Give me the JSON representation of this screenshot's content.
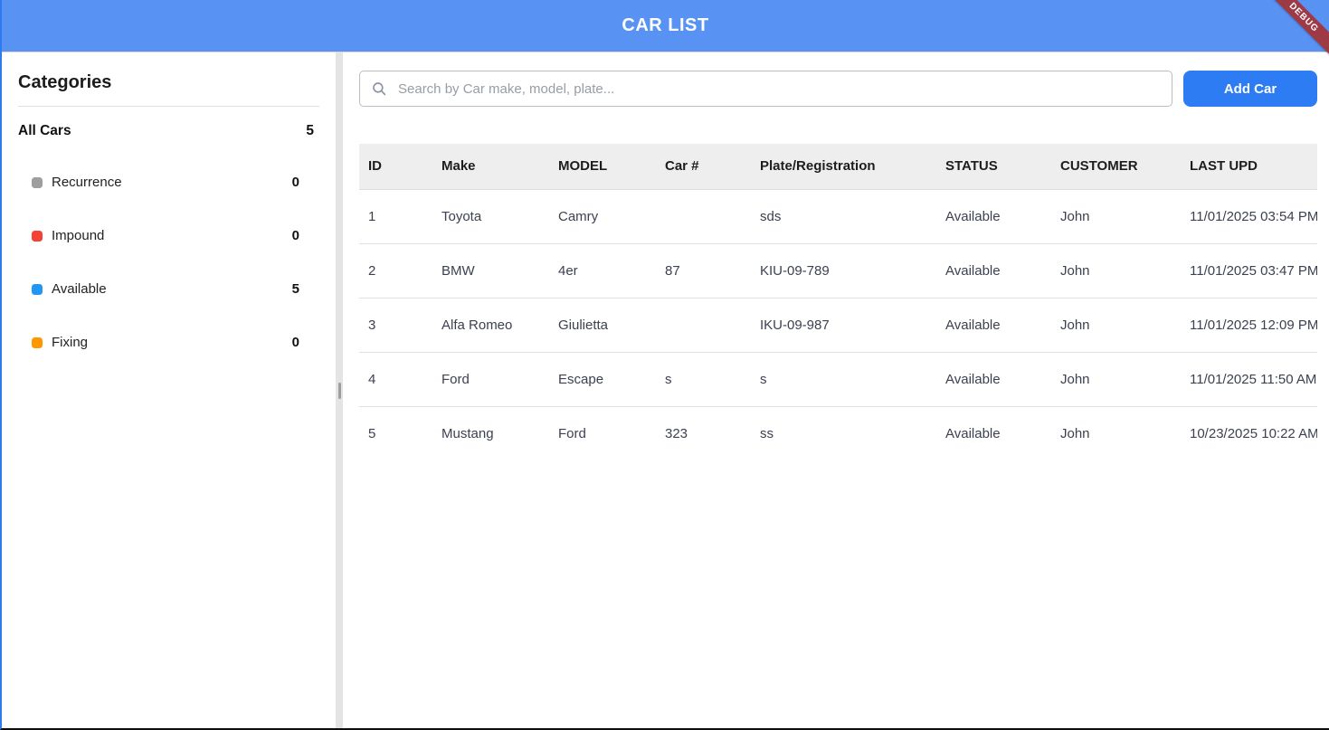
{
  "app": {
    "title": "CAR LIST",
    "debug_ribbon": "DEBUG"
  },
  "colors": {
    "header_blue": "#5892f3",
    "accent_button_blue": "#2d7cf3",
    "ribbon_maroon": "#9e3a46",
    "window_border_blue": "#2e7bf0",
    "table_header_bg": "#eeeeee"
  },
  "sidebar": {
    "heading": "Categories",
    "all_cars": {
      "label": "All Cars",
      "count": "5"
    },
    "items": [
      {
        "label": "Recurrence",
        "count": "0",
        "color": "#9e9e9e"
      },
      {
        "label": "Impound",
        "count": "0",
        "color": "#f44336"
      },
      {
        "label": "Available",
        "count": "5",
        "color": "#2196f3"
      },
      {
        "label": "Fixing",
        "count": "0",
        "color": "#ff9800"
      }
    ]
  },
  "toolbar": {
    "search_placeholder": "Search by Car make, model, plate...",
    "add_car_label": "Add Car"
  },
  "table": {
    "columns": [
      "ID",
      "Make",
      "MODEL",
      "Car #",
      "Plate/Registration",
      "STATUS",
      "CUSTOMER",
      "LAST UPD"
    ],
    "rows": [
      [
        "1",
        "Toyota",
        "Camry",
        "",
        "sds",
        "Available",
        "John",
        "11/01/2025 03:54 PM"
      ],
      [
        "2",
        "BMW",
        "4er",
        "87",
        "KIU-09-789",
        "Available",
        "John",
        "11/01/2025 03:47 PM"
      ],
      [
        "3",
        "Alfa Romeo",
        "Giulietta",
        "",
        "IKU-09-987",
        "Available",
        "John",
        "11/01/2025 12:09 PM"
      ],
      [
        "4",
        "Ford",
        "Escape",
        "s",
        "s",
        "Available",
        "John",
        "11/01/2025 11:50 AM"
      ],
      [
        "5",
        "Mustang",
        "Ford",
        "323",
        "ss",
        "Available",
        "John",
        "10/23/2025 10:22 AM"
      ]
    ]
  }
}
